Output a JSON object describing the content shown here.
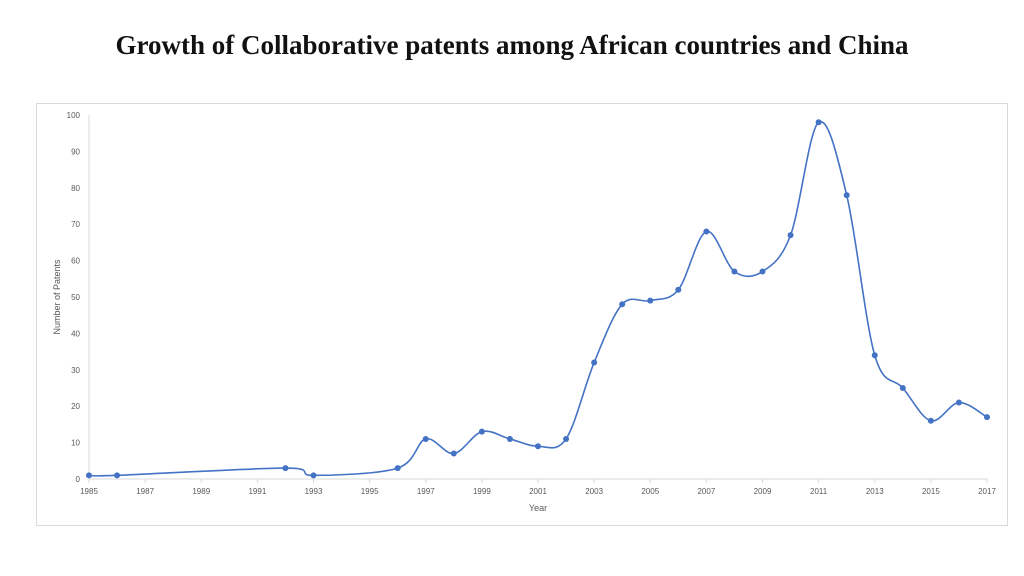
{
  "page": {
    "title": "Growth of  Collaborative patents among African countries and China"
  },
  "chart_data": {
    "type": "line",
    "title": "",
    "xlabel": "Year",
    "ylabel": "Number of Patents",
    "x": [
      1985,
      1986,
      1992,
      1993,
      1996,
      1997,
      1998,
      1999,
      2000,
      2001,
      2002,
      2003,
      2004,
      2005,
      2006,
      2007,
      2008,
      2009,
      2010,
      2011,
      2012,
      2013,
      2014,
      2015,
      2016,
      2017
    ],
    "series": [
      {
        "values": [
          1,
          1,
          3,
          1,
          3,
          11,
          7,
          13,
          11,
          9,
          11,
          32,
          48,
          49,
          52,
          68,
          57,
          57,
          67,
          98,
          78,
          34,
          25,
          16,
          21,
          17
        ]
      }
    ],
    "xlim": [
      1985,
      2017
    ],
    "ylim": [
      0,
      100
    ],
    "x_ticks": [
      "1985",
      "1987",
      "1989",
      "1991",
      "1993",
      "1995",
      "1997",
      "1999",
      "2001",
      "2003",
      "2005",
      "2007",
      "2009",
      "2011",
      "2013",
      "2015",
      "2017"
    ],
    "y_ticks": [
      "0",
      "10",
      "20",
      "30",
      "40",
      "50",
      "60",
      "70",
      "80",
      "90",
      "100"
    ],
    "grid": false,
    "smooth": true,
    "color": "#4472c4"
  }
}
